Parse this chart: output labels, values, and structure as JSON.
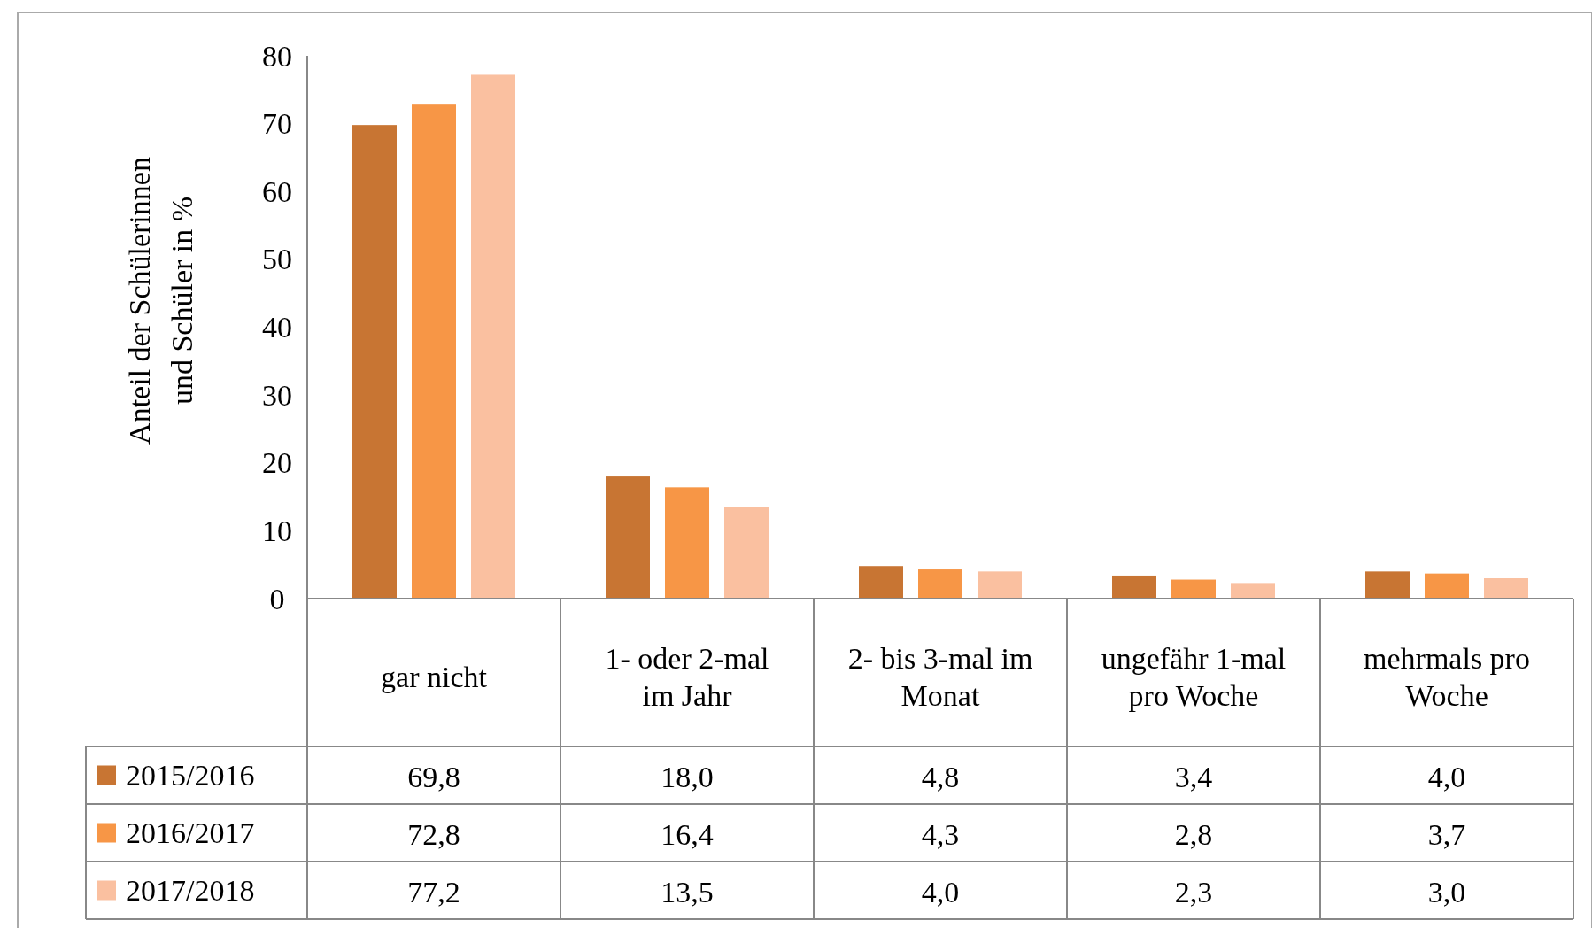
{
  "chart_data": {
    "type": "bar",
    "ylabel": "Anteil der Schülerinnen und Schüler in %",
    "categories": [
      "gar nicht",
      "1- oder 2-mal im Jahr",
      "2- bis 3-mal im Monat",
      "ungefähr 1-mal pro Woche",
      "mehrmals pro Woche"
    ],
    "series": [
      {
        "name": "2015/2016",
        "color": "#c87533",
        "values": [
          69.8,
          18.0,
          4.8,
          3.4,
          4.0
        ],
        "value_labels": [
          "69,8",
          "18,0",
          "4,8",
          "3,4",
          "4,0"
        ]
      },
      {
        "name": "2016/2017",
        "color": "#f79646",
        "values": [
          72.8,
          16.4,
          4.3,
          2.8,
          3.7
        ],
        "value_labels": [
          "72,8",
          "16,4",
          "4,3",
          "2,8",
          "3,7"
        ]
      },
      {
        "name": "2017/2018",
        "color": "#fac0a0",
        "values": [
          77.2,
          13.5,
          4.0,
          2.3,
          3.0
        ],
        "value_labels": [
          "77,2",
          "13,5",
          "4,0",
          "2,3",
          "3,0"
        ]
      }
    ],
    "ylim": [
      0,
      80
    ],
    "yticks": [
      0,
      10,
      20,
      30,
      40,
      50,
      60,
      70,
      80
    ],
    "grid": false,
    "legend": "bottom"
  }
}
